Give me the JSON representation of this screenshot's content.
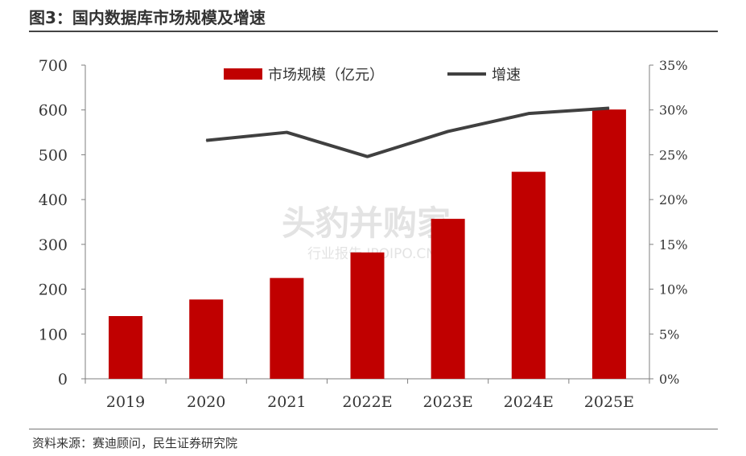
{
  "header": {
    "title": "图3：国内数据库市场规模及增速"
  },
  "footer": {
    "source": "资料来源：赛迪顾问，民生证券研究院"
  },
  "watermark": {
    "line1": "头豹并购家",
    "line2": "行业报告 IPOIPO.CN"
  },
  "chart_data": {
    "type": "bar",
    "categories": [
      "2019",
      "2020",
      "2021",
      "2022E",
      "2023E",
      "2024E",
      "2025E"
    ],
    "series": [
      {
        "name": "市场规模（亿元）",
        "type": "bar",
        "axis": "left",
        "values": [
          140,
          177,
          225,
          282,
          357,
          462,
          601
        ]
      },
      {
        "name": "增速",
        "type": "line",
        "axis": "right",
        "values": [
          null,
          0.266,
          0.275,
          0.248,
          0.276,
          0.296,
          0.302
        ]
      }
    ],
    "y_left": {
      "ylim": [
        0,
        700
      ],
      "ticks": [
        "0",
        "100",
        "200",
        "300",
        "400",
        "500",
        "600",
        "700"
      ]
    },
    "y_right": {
      "ylim": [
        0,
        0.35
      ],
      "ticks": [
        "0%",
        "5%",
        "10%",
        "15%",
        "20%",
        "25%",
        "30%",
        "35%"
      ]
    },
    "legend": {
      "placement": "top-center"
    },
    "grid": false,
    "colors": {
      "bar": "#c00000",
      "line": "#404040",
      "axis": "#7f7f7f"
    }
  }
}
